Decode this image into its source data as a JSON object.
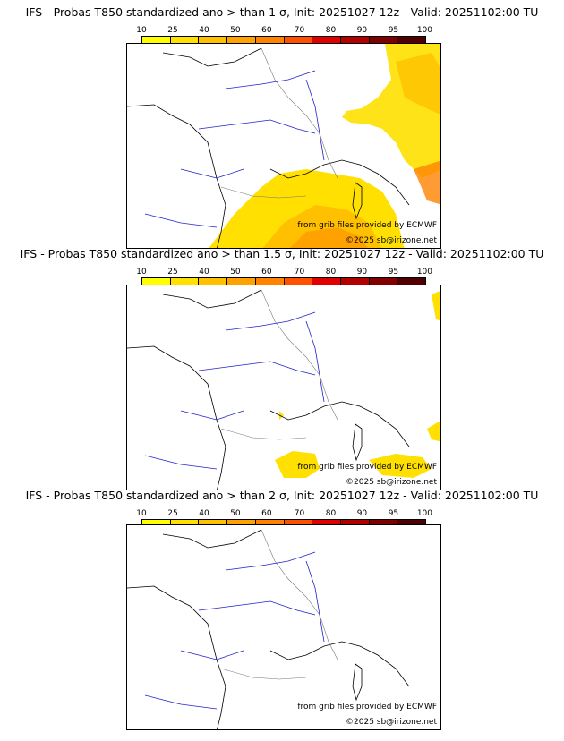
{
  "colorbar": {
    "ticks": [
      "10",
      "25",
      "40",
      "50",
      "60",
      "70",
      "80",
      "90",
      "95",
      "100"
    ],
    "colors": [
      "#ffff00",
      "#ffe000",
      "#ffc000",
      "#ffa200",
      "#ff8200",
      "#ff5000",
      "#e00000",
      "#b00000",
      "#800000",
      "#500000"
    ]
  },
  "panels": [
    {
      "title": "IFS - Probas T850  standardized ano > than 1 σ, Init: 20251027 12z - Valid: 20251102:00 TU",
      "credit_source": "from grib files provided by ECMWF",
      "credit_copyright": "©2025 sb@irizone.net"
    },
    {
      "title": "IFS - Probas T850  standardized ano > than 1.5 σ, Init: 20251027 12z - Valid: 20251102:00 TU",
      "credit_source": "from grib files provided by ECMWF",
      "credit_copyright": "©2025 sb@irizone.net"
    },
    {
      "title": "IFS - Probas T850  standardized ano > than 2 σ, Init: 20251027 12z - Valid: 20251102:00 TU",
      "credit_source": "from grib files provided by ECMWF",
      "credit_copyright": "©2025 sb@irizone.net"
    }
  ]
}
